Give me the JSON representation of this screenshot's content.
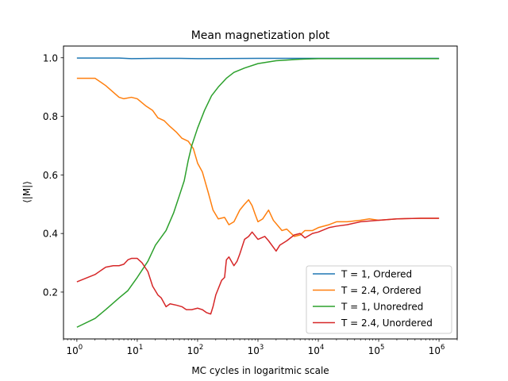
{
  "chart_data": {
    "type": "line",
    "title": "Mean magnetization plot",
    "xlabel": "MC cycles in logaritmic scale",
    "ylabel": "⟨|M|⟩",
    "xscale": "log",
    "xlim": [
      0.6,
      2000000
    ],
    "ylim": [
      0.04,
      1.04
    ],
    "x_ticks": [
      {
        "value": 1,
        "base": "10",
        "exp": "0"
      },
      {
        "value": 10,
        "base": "10",
        "exp": "1"
      },
      {
        "value": 100,
        "base": "10",
        "exp": "2"
      },
      {
        "value": 1000,
        "base": "10",
        "exp": "3"
      },
      {
        "value": 10000,
        "base": "10",
        "exp": "4"
      },
      {
        "value": 100000,
        "base": "10",
        "exp": "5"
      },
      {
        "value": 1000000,
        "base": "10",
        "exp": "6"
      }
    ],
    "y_ticks": [
      {
        "value": 0.2,
        "label": "0.2"
      },
      {
        "value": 0.4,
        "label": "0.4"
      },
      {
        "value": 0.6,
        "label": "0.6"
      },
      {
        "value": 0.8,
        "label": "0.8"
      },
      {
        "value": 1.0,
        "label": "1.0"
      }
    ],
    "grid": false,
    "legend_position": "lower-right",
    "series": [
      {
        "name": "T = 1, Ordered",
        "color": "#1f77b4",
        "points": [
          [
            1,
            0.999
          ],
          [
            2,
            0.999
          ],
          [
            5,
            0.999
          ],
          [
            8,
            0.997
          ],
          [
            20,
            0.998
          ],
          [
            50,
            0.998
          ],
          [
            100,
            0.997
          ],
          [
            1000,
            0.998
          ],
          [
            10000,
            0.998
          ],
          [
            100000,
            0.998
          ],
          [
            1000000,
            0.998
          ]
        ]
      },
      {
        "name": "T = 2.4, Ordered",
        "color": "#ff7f0e",
        "points": [
          [
            1,
            0.93
          ],
          [
            2,
            0.93
          ],
          [
            3,
            0.905
          ],
          [
            5,
            0.865
          ],
          [
            6,
            0.86
          ],
          [
            8,
            0.865
          ],
          [
            10,
            0.86
          ],
          [
            14,
            0.835
          ],
          [
            18,
            0.82
          ],
          [
            22,
            0.795
          ],
          [
            28,
            0.785
          ],
          [
            35,
            0.765
          ],
          [
            45,
            0.745
          ],
          [
            55,
            0.725
          ],
          [
            70,
            0.715
          ],
          [
            85,
            0.69
          ],
          [
            100,
            0.64
          ],
          [
            120,
            0.61
          ],
          [
            150,
            0.54
          ],
          [
            180,
            0.48
          ],
          [
            220,
            0.45
          ],
          [
            280,
            0.455
          ],
          [
            330,
            0.43
          ],
          [
            400,
            0.44
          ],
          [
            500,
            0.48
          ],
          [
            600,
            0.5
          ],
          [
            700,
            0.515
          ],
          [
            800,
            0.495
          ],
          [
            900,
            0.465
          ],
          [
            1000,
            0.44
          ],
          [
            1200,
            0.45
          ],
          [
            1500,
            0.48
          ],
          [
            1800,
            0.445
          ],
          [
            2500,
            0.41
          ],
          [
            3000,
            0.415
          ],
          [
            4000,
            0.39
          ],
          [
            5000,
            0.395
          ],
          [
            6000,
            0.41
          ],
          [
            8000,
            0.41
          ],
          [
            10000,
            0.42
          ],
          [
            15000,
            0.43
          ],
          [
            20000,
            0.44
          ],
          [
            30000,
            0.44
          ],
          [
            50000,
            0.445
          ],
          [
            70000,
            0.45
          ],
          [
            100000,
            0.445
          ],
          [
            200000,
            0.45
          ],
          [
            500000,
            0.452
          ],
          [
            1000000,
            0.452
          ]
        ]
      },
      {
        "name": "T = 1, Unoredred",
        "color": "#2ca02c",
        "points": [
          [
            1,
            0.08
          ],
          [
            2,
            0.11
          ],
          [
            3,
            0.14
          ],
          [
            5,
            0.18
          ],
          [
            7,
            0.205
          ],
          [
            10,
            0.25
          ],
          [
            15,
            0.305
          ],
          [
            20,
            0.36
          ],
          [
            30,
            0.41
          ],
          [
            40,
            0.47
          ],
          [
            50,
            0.53
          ],
          [
            60,
            0.58
          ],
          [
            70,
            0.65
          ],
          [
            80,
            0.7
          ],
          [
            100,
            0.76
          ],
          [
            130,
            0.82
          ],
          [
            170,
            0.87
          ],
          [
            220,
            0.9
          ],
          [
            300,
            0.93
          ],
          [
            400,
            0.95
          ],
          [
            600,
            0.965
          ],
          [
            1000,
            0.98
          ],
          [
            2000,
            0.99
          ],
          [
            5000,
            0.995
          ],
          [
            10000,
            0.997
          ],
          [
            100000,
            0.997
          ],
          [
            1000000,
            0.997
          ]
        ]
      },
      {
        "name": "T = 2.4, Unordered",
        "color": "#d62728",
        "points": [
          [
            1,
            0.235
          ],
          [
            2,
            0.26
          ],
          [
            3,
            0.285
          ],
          [
            4,
            0.29
          ],
          [
            5,
            0.29
          ],
          [
            6,
            0.295
          ],
          [
            7,
            0.31
          ],
          [
            8,
            0.315
          ],
          [
            10,
            0.315
          ],
          [
            12,
            0.3
          ],
          [
            15,
            0.27
          ],
          [
            18,
            0.22
          ],
          [
            22,
            0.19
          ],
          [
            25,
            0.18
          ],
          [
            30,
            0.15
          ],
          [
            35,
            0.16
          ],
          [
            45,
            0.155
          ],
          [
            55,
            0.15
          ],
          [
            65,
            0.14
          ],
          [
            80,
            0.14
          ],
          [
            100,
            0.145
          ],
          [
            120,
            0.14
          ],
          [
            140,
            0.13
          ],
          [
            165,
            0.125
          ],
          [
            180,
            0.15
          ],
          [
            200,
            0.19
          ],
          [
            250,
            0.24
          ],
          [
            280,
            0.25
          ],
          [
            300,
            0.31
          ],
          [
            330,
            0.32
          ],
          [
            400,
            0.29
          ],
          [
            450,
            0.305
          ],
          [
            500,
            0.33
          ],
          [
            600,
            0.38
          ],
          [
            700,
            0.39
          ],
          [
            800,
            0.405
          ],
          [
            1000,
            0.38
          ],
          [
            1300,
            0.39
          ],
          [
            1500,
            0.375
          ],
          [
            2000,
            0.34
          ],
          [
            2300,
            0.36
          ],
          [
            3000,
            0.375
          ],
          [
            4000,
            0.395
          ],
          [
            5000,
            0.4
          ],
          [
            6000,
            0.385
          ],
          [
            8000,
            0.4
          ],
          [
            10000,
            0.405
          ],
          [
            15000,
            0.42
          ],
          [
            20000,
            0.425
          ],
          [
            30000,
            0.43
          ],
          [
            50000,
            0.44
          ],
          [
            100000,
            0.445
          ],
          [
            200000,
            0.45
          ],
          [
            500000,
            0.452
          ],
          [
            1000000,
            0.452
          ]
        ]
      }
    ]
  }
}
